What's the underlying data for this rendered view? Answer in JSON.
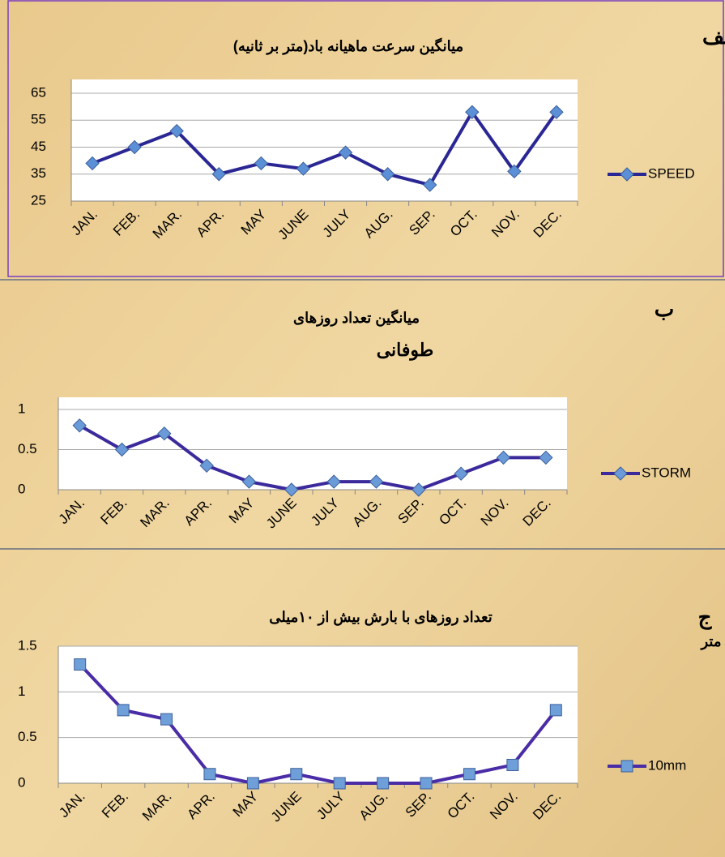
{
  "chart_data": [
    {
      "type": "line",
      "panel_label": "الف",
      "title": [
        "میانگین سرعت ماهیانه باد(متر بر ثانیه)"
      ],
      "categories": [
        "JAN.",
        "FEB.",
        "MAR.",
        "APR.",
        "MAY",
        "JUNE",
        "JULY",
        "AUG.",
        "SEP.",
        "OCT.",
        "NOV.",
        "DEC."
      ],
      "series": [
        {
          "name": "SPEED",
          "color": "#2a2794",
          "marker_color": "#5b8fd6",
          "marker": "diamond",
          "values": [
            39,
            45,
            51,
            35,
            39,
            37,
            43,
            35,
            31,
            58,
            36,
            58
          ]
        }
      ],
      "ylim": [
        25,
        65
      ],
      "yticks": [
        25,
        35,
        45,
        55,
        65
      ],
      "grid": true,
      "legend": "right"
    },
    {
      "type": "line",
      "panel_label": "ب",
      "title": [
        "میانگین تعداد روزهای",
        "طوفانی"
      ],
      "categories": [
        "JAN.",
        "FEB.",
        "MAR.",
        "APR.",
        "MAY",
        "JUNE",
        "JULY",
        "AUG.",
        "SEP.",
        "OCT.",
        "NOV.",
        "DEC."
      ],
      "series": [
        {
          "name": "STORM",
          "color": "#3b2a9c",
          "marker_color": "#6a9bd8",
          "marker": "diamond",
          "values": [
            0.8,
            0.5,
            0.7,
            0.3,
            0.1,
            0,
            0.1,
            0.1,
            0,
            0.2,
            0.4,
            0.4
          ]
        }
      ],
      "ylim": [
        0,
        1
      ],
      "yticks": [
        0,
        0.5,
        1
      ],
      "grid": true,
      "legend": "right"
    },
    {
      "type": "line",
      "panel_label": "ج",
      "title": [
        "تعداد روزهای با بارش بیش از ۱۰میلی",
        "متر"
      ],
      "categories": [
        "JAN.",
        "FEB.",
        "MAR.",
        "APR.",
        "MAY",
        "JUNE",
        "JULY",
        "AUG.",
        "SEP.",
        "OCT.",
        "NOV.",
        "DEC."
      ],
      "series": [
        {
          "name": "10mm",
          "color": "#4a2ca6",
          "marker_color": "#6f9fd8",
          "marker": "square",
          "values": [
            1.3,
            0.8,
            0.7,
            0.1,
            0,
            0.1,
            0,
            0,
            0,
            0.1,
            0.2,
            0.8
          ]
        }
      ],
      "ylim": [
        0,
        1.5
      ],
      "yticks": [
        0,
        0.5,
        1,
        1.5
      ],
      "grid": true,
      "legend": "right"
    }
  ]
}
